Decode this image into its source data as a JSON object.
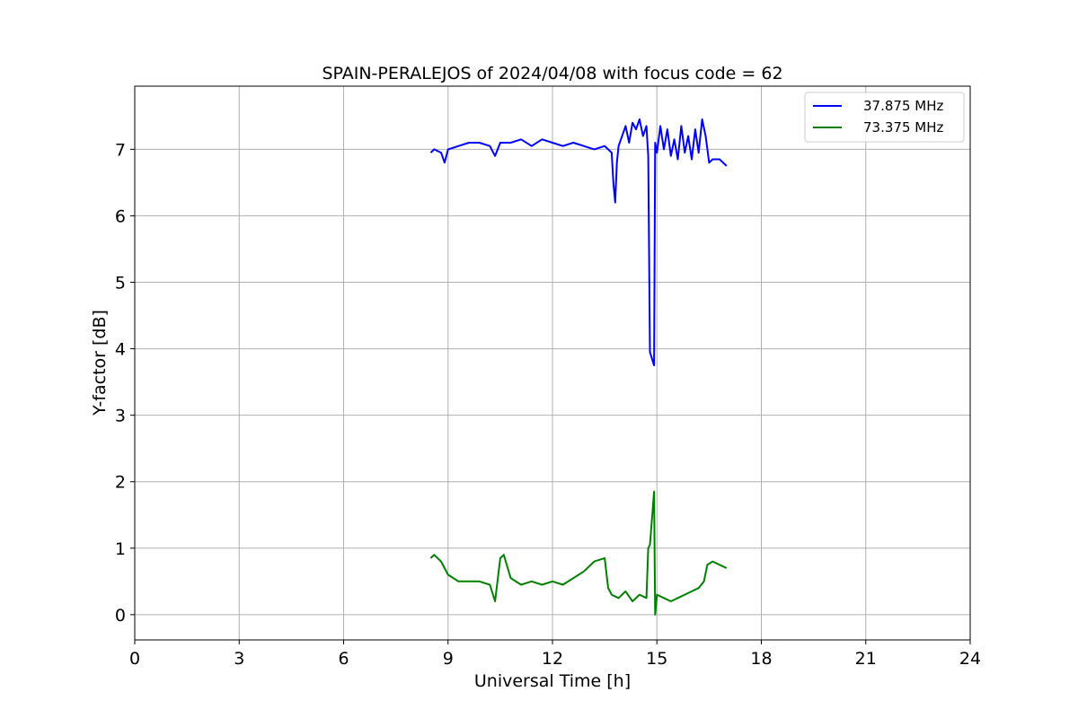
{
  "chart_data": {
    "type": "line",
    "title": "SPAIN-PERALEJOS of 2024/04/08 with focus code = 62",
    "xlabel": "Universal Time [h]",
    "ylabel": "Y-factor [dB]",
    "xlim": [
      0,
      24
    ],
    "ylim": [
      -0.38,
      7.95
    ],
    "xticks": [
      0,
      3,
      6,
      9,
      12,
      15,
      18,
      21,
      24
    ],
    "yticks": [
      0,
      1,
      2,
      3,
      4,
      5,
      6,
      7
    ],
    "grid": true,
    "legend_position": "top-right",
    "series": [
      {
        "name": "37.875 MHz",
        "color": "#0000ff",
        "x": [
          8.5,
          8.6,
          8.8,
          8.9,
          9.0,
          9.3,
          9.6,
          9.9,
          10.2,
          10.35,
          10.5,
          10.8,
          11.1,
          11.4,
          11.7,
          12.0,
          12.3,
          12.6,
          12.9,
          13.2,
          13.5,
          13.7,
          13.75,
          13.8,
          13.85,
          13.9,
          14.0,
          14.1,
          14.2,
          14.3,
          14.4,
          14.5,
          14.6,
          14.7,
          14.75,
          14.8,
          14.92,
          14.95,
          15.0,
          15.1,
          15.2,
          15.3,
          15.4,
          15.5,
          15.6,
          15.7,
          15.8,
          15.9,
          16.0,
          16.1,
          16.2,
          16.3,
          16.4,
          16.5,
          16.6,
          16.8,
          17.0
        ],
        "y": [
          6.95,
          7.0,
          6.95,
          6.8,
          7.0,
          7.05,
          7.1,
          7.1,
          7.05,
          6.9,
          7.1,
          7.1,
          7.15,
          7.05,
          7.15,
          7.1,
          7.05,
          7.1,
          7.05,
          7.0,
          7.05,
          6.95,
          6.5,
          6.2,
          6.8,
          7.05,
          7.2,
          7.35,
          7.1,
          7.4,
          7.3,
          7.45,
          7.2,
          7.35,
          6.9,
          3.95,
          3.75,
          7.1,
          6.95,
          7.35,
          7.0,
          7.3,
          6.9,
          7.15,
          6.85,
          7.35,
          6.95,
          7.2,
          6.85,
          7.3,
          6.95,
          7.45,
          7.2,
          6.8,
          6.85,
          6.85,
          6.75
        ]
      },
      {
        "name": "73.375 MHz",
        "color": "#008000",
        "x": [
          8.5,
          8.6,
          8.8,
          8.9,
          9.0,
          9.3,
          9.6,
          9.9,
          10.2,
          10.35,
          10.5,
          10.6,
          10.8,
          11.1,
          11.4,
          11.7,
          12.0,
          12.3,
          12.6,
          12.9,
          13.2,
          13.5,
          13.6,
          13.7,
          13.9,
          14.1,
          14.3,
          14.5,
          14.7,
          14.75,
          14.8,
          14.92,
          14.95,
          15.0,
          15.2,
          15.4,
          15.6,
          15.8,
          16.0,
          16.2,
          16.35,
          16.45,
          16.6,
          16.8,
          17.0
        ],
        "y": [
          0.85,
          0.9,
          0.8,
          0.7,
          0.6,
          0.5,
          0.5,
          0.5,
          0.45,
          0.2,
          0.85,
          0.9,
          0.55,
          0.45,
          0.5,
          0.45,
          0.5,
          0.45,
          0.55,
          0.65,
          0.8,
          0.85,
          0.4,
          0.3,
          0.25,
          0.35,
          0.2,
          0.3,
          0.25,
          1.0,
          1.05,
          1.85,
          0.0,
          0.3,
          0.25,
          0.2,
          0.25,
          0.3,
          0.35,
          0.4,
          0.5,
          0.75,
          0.8,
          0.75,
          0.7
        ]
      }
    ]
  }
}
